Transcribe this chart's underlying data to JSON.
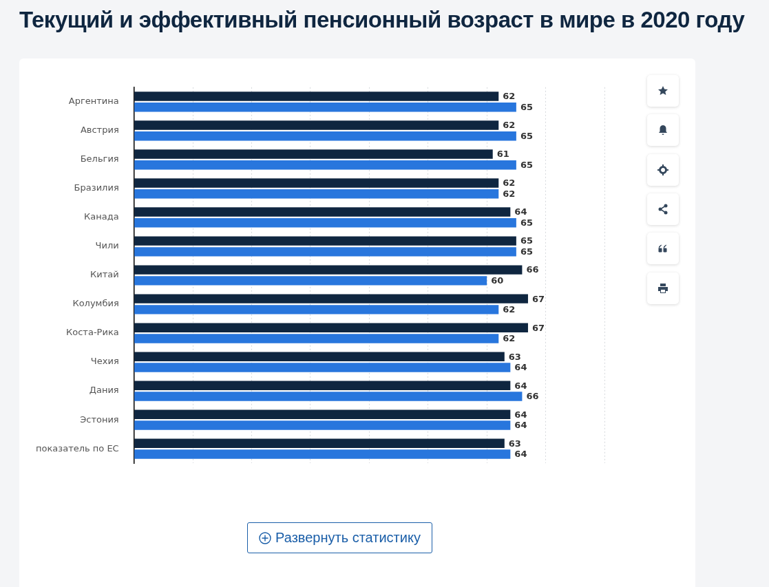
{
  "chart_data": {
    "type": "bar",
    "orientation": "horizontal",
    "title": "Текущий и эффективный пенсионный возраст в мире в 2020 году",
    "categories": [
      "Аргентина",
      "Австрия",
      "Бельгия",
      "Бразилия",
      "Канада",
      "Чили",
      "Китай",
      "Колумбия",
      "Коста-Рика",
      "Чехия",
      "Дания",
      "Эстония",
      "показатель по ЕС"
    ],
    "series": [
      {
        "color": "#0f2640",
        "values": [
          62,
          62,
          61,
          62,
          64,
          65,
          66,
          67,
          67,
          63,
          64,
          64,
          63
        ]
      },
      {
        "color": "#2876dd",
        "values": [
          65,
          65,
          65,
          62,
          65,
          65,
          60,
          62,
          62,
          64,
          66,
          64,
          64
        ]
      }
    ],
    "annotations": [
      "Развернуть статистику"
    ],
    "xlim": [
      0,
      80
    ],
    "xticks": [
      {
        "value": 0,
        "label": null
      },
      {
        "value": 10,
        "label": null
      },
      {
        "value": 20,
        "label": null
      },
      {
        "value": 30,
        "label": null
      },
      {
        "value": 40,
        "label": null
      },
      {
        "value": 50,
        "label": null
      },
      {
        "value": 60,
        "label": null
      },
      {
        "value": 70,
        "label": null
      },
      {
        "value": 80,
        "label": null
      }
    ],
    "tick_labels": "y",
    "grid": "x",
    "data_labels": true,
    "legend": false
  }
}
